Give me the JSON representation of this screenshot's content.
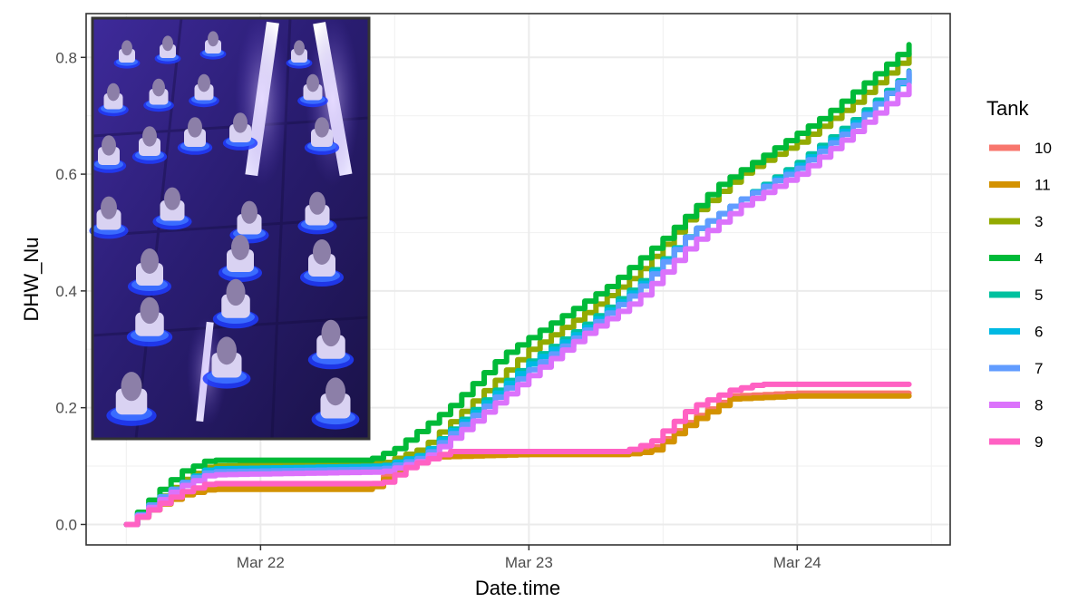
{
  "chart_data": {
    "type": "line",
    "title": "",
    "xlabel": "Date.time",
    "ylabel": "DHW_Nu",
    "x_tick_labels": [
      "Mar 22",
      "Mar 23",
      "Mar 24"
    ],
    "x_ticks": [
      1.0,
      2.0,
      3.0
    ],
    "xlim": [
      0.35,
      3.57
    ],
    "ylim": [
      -0.035,
      0.875
    ],
    "y_ticks": [
      0.0,
      0.2,
      0.4,
      0.6,
      0.8
    ],
    "y_tick_labels": [
      "0.0",
      "0.2",
      "0.4",
      "0.6",
      "0.8"
    ],
    "x_units": "days after Mar 21 00:00",
    "legend_title": "Tank",
    "legend_position": "right",
    "grid": true,
    "inset_photo": "coral fragments in aquarium tank under blue light",
    "series": [
      {
        "name": "10",
        "color": "#F8766D",
        "x": [
          0.5,
          0.6,
          0.7,
          0.8,
          1.4,
          1.5,
          1.6,
          2.0,
          2.35,
          2.45,
          2.6,
          2.75,
          3.0,
          3.45
        ],
        "y": [
          0.0,
          0.03,
          0.055,
          0.065,
          0.065,
          0.095,
          0.12,
          0.12,
          0.12,
          0.13,
          0.18,
          0.22,
          0.225,
          0.225
        ]
      },
      {
        "name": "11",
        "color": "#D39200",
        "x": [
          0.5,
          0.6,
          0.7,
          0.8,
          1.4,
          1.5,
          1.6,
          2.0,
          2.35,
          2.45,
          2.6,
          2.75,
          3.0,
          3.45
        ],
        "y": [
          0.0,
          0.03,
          0.05,
          0.06,
          0.06,
          0.09,
          0.115,
          0.12,
          0.12,
          0.125,
          0.175,
          0.215,
          0.22,
          0.22
        ]
      },
      {
        "name": "3",
        "color": "#93AA00",
        "x": [
          0.5,
          0.6,
          0.7,
          0.8,
          1.45,
          1.6,
          1.8,
          2.0,
          2.2,
          2.4,
          2.6,
          2.8,
          3.0,
          3.2,
          3.45
        ],
        "y": [
          0.0,
          0.04,
          0.075,
          0.1,
          0.105,
          0.13,
          0.215,
          0.3,
          0.36,
          0.43,
          0.53,
          0.605,
          0.655,
          0.72,
          0.82
        ]
      },
      {
        "name": "4",
        "color": "#00BA38",
        "x": [
          0.5,
          0.6,
          0.7,
          0.8,
          1.4,
          1.5,
          1.7,
          1.9,
          2.1,
          2.3,
          2.5,
          2.7,
          2.9,
          3.1,
          3.3,
          3.45
        ],
        "y": [
          0.0,
          0.05,
          0.09,
          0.11,
          0.11,
          0.13,
          0.2,
          0.29,
          0.35,
          0.41,
          0.49,
          0.58,
          0.64,
          0.7,
          0.775,
          0.835
        ]
      },
      {
        "name": "5",
        "color": "#00C19F",
        "x": [
          0.5,
          0.6,
          0.7,
          0.8,
          1.45,
          1.6,
          1.8,
          2.0,
          2.2,
          2.4,
          2.6,
          2.8,
          3.0,
          3.2,
          3.45
        ],
        "y": [
          0.0,
          0.04,
          0.07,
          0.095,
          0.1,
          0.12,
          0.2,
          0.28,
          0.34,
          0.41,
          0.5,
          0.56,
          0.62,
          0.69,
          0.79
        ]
      },
      {
        "name": "6",
        "color": "#00B9E3",
        "x": [
          0.5,
          0.6,
          0.7,
          0.8,
          1.45,
          1.6,
          1.8,
          2.0,
          2.2,
          2.4,
          2.6,
          2.8,
          3.0,
          3.2,
          3.45
        ],
        "y": [
          0.0,
          0.04,
          0.07,
          0.095,
          0.1,
          0.12,
          0.195,
          0.275,
          0.335,
          0.405,
          0.5,
          0.56,
          0.615,
          0.685,
          0.785
        ]
      },
      {
        "name": "7",
        "color": "#619CFF",
        "x": [
          0.5,
          0.6,
          0.7,
          0.8,
          1.45,
          1.6,
          1.8,
          2.0,
          2.2,
          2.4,
          2.6,
          2.8,
          3.0,
          3.2,
          3.45
        ],
        "y": [
          0.0,
          0.04,
          0.07,
          0.09,
          0.095,
          0.115,
          0.19,
          0.265,
          0.33,
          0.4,
          0.5,
          0.56,
          0.61,
          0.68,
          0.79
        ]
      },
      {
        "name": "8",
        "color": "#DB72FB",
        "x": [
          0.5,
          0.6,
          0.7,
          0.8,
          1.45,
          1.6,
          1.8,
          2.0,
          2.2,
          2.4,
          2.6,
          2.8,
          3.0,
          3.2,
          3.45
        ],
        "y": [
          0.0,
          0.035,
          0.065,
          0.085,
          0.09,
          0.11,
          0.18,
          0.255,
          0.325,
          0.385,
          0.48,
          0.55,
          0.6,
          0.67,
          0.765
        ]
      },
      {
        "name": "9",
        "color": "#FF61C3",
        "x": [
          0.5,
          0.6,
          0.7,
          0.8,
          1.45,
          1.55,
          1.7,
          2.0,
          2.35,
          2.45,
          2.6,
          2.75,
          2.85,
          3.0,
          3.45
        ],
        "y": [
          0.0,
          0.03,
          0.055,
          0.07,
          0.07,
          0.1,
          0.125,
          0.125,
          0.125,
          0.14,
          0.2,
          0.23,
          0.24,
          0.24,
          0.24
        ]
      }
    ]
  }
}
